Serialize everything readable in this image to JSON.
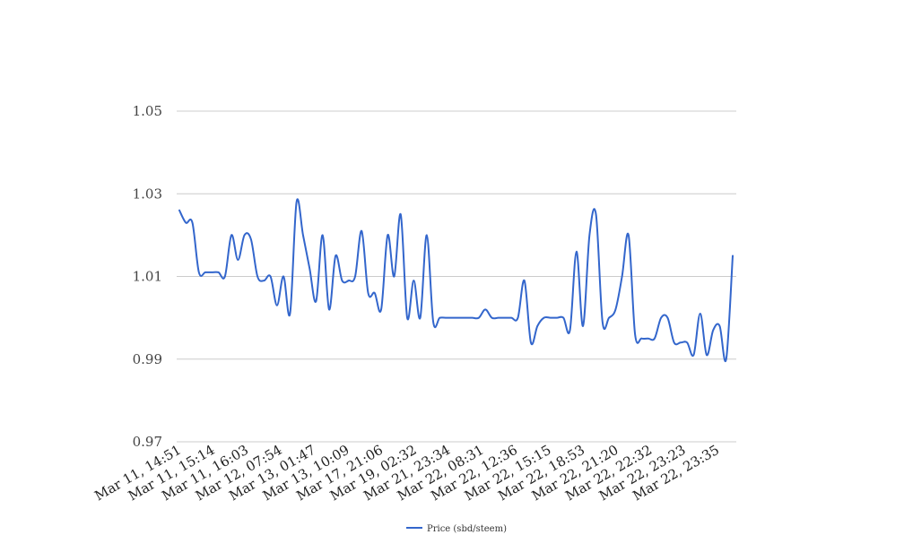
{
  "chart_data": {
    "type": "line",
    "title": "",
    "xlabel": "",
    "ylabel": "",
    "ylim": [
      0.97,
      1.05
    ],
    "yticks": [
      "0.97",
      "0.99",
      "1.01",
      "1.03",
      "1.05"
    ],
    "grid": true,
    "legend_position": "bottom-center",
    "x_tick_labels": [
      "Mar 11, 14:51",
      "Mar 11, 15:14",
      "Mar 11, 16:03",
      "Mar 12, 07:54",
      "Mar 13, 01:47",
      "Mar 13, 10:09",
      "Mar 17, 21:06",
      "Mar 19, 02:32",
      "Mar 21, 23:34",
      "Mar 22, 08:31",
      "Mar 22, 12:36",
      "Mar 22, 15:15",
      "Mar 22, 18:53",
      "Mar 22, 21:20",
      "Mar 22, 22:32",
      "Mar 22, 23:23",
      "Mar 22, 23:35"
    ],
    "series": [
      {
        "name": "Price (sbd/steem)",
        "color": "#3366cc",
        "values": [
          1.026,
          1.023,
          1.023,
          1.011,
          1.011,
          1.011,
          1.011,
          1.01,
          1.02,
          1.014,
          1.02,
          1.019,
          1.01,
          1.009,
          1.01,
          1.003,
          1.01,
          1.001,
          1.028,
          1.02,
          1.012,
          1.004,
          1.02,
          1.002,
          1.015,
          1.009,
          1.009,
          1.01,
          1.021,
          1.006,
          1.006,
          1.002,
          1.02,
          1.01,
          1.025,
          1.0,
          1.009,
          1.0,
          1.02,
          0.999,
          1.0,
          1.0,
          1.0,
          1.0,
          1.0,
          1.0,
          1.0,
          1.002,
          1.0,
          1.0,
          1.0,
          1.0,
          1.0,
          1.009,
          0.994,
          0.998,
          1.0,
          1.0,
          1.0,
          1.0,
          0.997,
          1.016,
          0.998,
          1.02,
          1.025,
          0.999,
          1.0,
          1.002,
          1.01,
          1.02,
          0.996,
          0.995,
          0.995,
          0.995,
          1.0,
          1.0,
          0.994,
          0.994,
          0.994,
          0.991,
          1.001,
          0.991,
          0.997,
          0.998,
          0.99,
          1.015
        ]
      }
    ]
  }
}
